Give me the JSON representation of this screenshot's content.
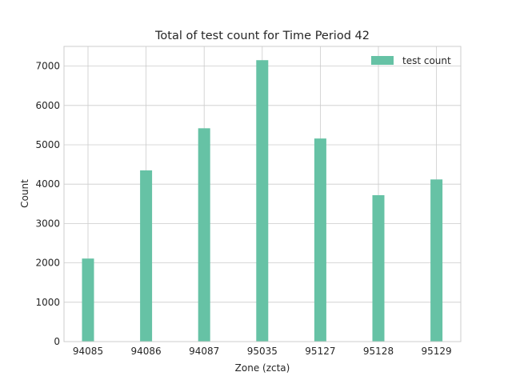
{
  "chart_data": {
    "type": "bar",
    "title": "Total of test count for Time Period 42",
    "xlabel": "Zone (zcta)",
    "ylabel": "Count",
    "categories": [
      "94085",
      "94086",
      "94087",
      "95035",
      "95127",
      "95128",
      "95129"
    ],
    "series": [
      {
        "name": "test count",
        "values": [
          2110,
          4350,
          5420,
          7150,
          5160,
          3720,
          4120
        ]
      }
    ],
    "ylim": [
      0,
      7500
    ],
    "yticks": [
      0,
      1000,
      2000,
      3000,
      4000,
      5000,
      6000,
      7000
    ],
    "grid": true,
    "legend": "top-right",
    "colors": {
      "bar": "#66c2a5",
      "grid": "#cccccc",
      "axes": "#cccccc"
    }
  }
}
